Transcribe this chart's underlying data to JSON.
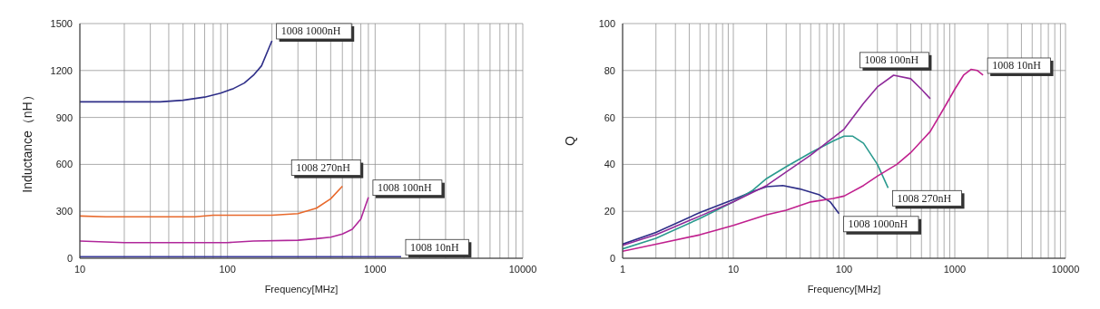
{
  "chart_data": [
    {
      "type": "line",
      "xlabel": "Frequency[MHz]",
      "ylabel": "Inductance（nH）",
      "log": "x",
      "grid": true,
      "line_style": "solid",
      "xlim": [
        10,
        10000
      ],
      "xticks": [
        10,
        {
          "value": 20,
          "label": null
        },
        {
          "value": 30,
          "label": null
        },
        {
          "value": 40,
          "label": null
        },
        {
          "value": 50,
          "label": null
        },
        {
          "value": 60,
          "label": null
        },
        {
          "value": 70,
          "label": null
        },
        {
          "value": 80,
          "label": null
        },
        {
          "value": 90,
          "label": null
        },
        100,
        {
          "value": 200,
          "label": null
        },
        {
          "value": 300,
          "label": null
        },
        {
          "value": 400,
          "label": null
        },
        {
          "value": 500,
          "label": null
        },
        {
          "value": 600,
          "label": null
        },
        {
          "value": 700,
          "label": null
        },
        {
          "value": 800,
          "label": null
        },
        {
          "value": 900,
          "label": null
        },
        1000,
        {
          "value": 2000,
          "label": null
        },
        {
          "value": 3000,
          "label": null
        },
        {
          "value": 4000,
          "label": null
        },
        {
          "value": 5000,
          "label": null
        },
        {
          "value": 6000,
          "label": null
        },
        {
          "value": 7000,
          "label": null
        },
        {
          "value": 8000,
          "label": null
        },
        {
          "value": 9000,
          "label": null
        },
        10000
      ],
      "ylim": [
        0,
        1500
      ],
      "yticks": [
        0,
        300,
        600,
        900,
        1200,
        1500
      ],
      "series": [
        {
          "color": "#2e2e88",
          "x": [
            10,
            20,
            35,
            50,
            70,
            90,
            110,
            130,
            150,
            170,
            200
          ],
          "values": [
            1000,
            1000,
            1000,
            1010,
            1030,
            1055,
            1085,
            1120,
            1170,
            1230,
            1390
          ]
        },
        {
          "color": "#e8692c",
          "x": [
            10,
            15,
            30,
            60,
            80,
            200,
            300,
            400,
            500,
            600
          ],
          "values": [
            270,
            265,
            265,
            265,
            275,
            275,
            285,
            320,
            380,
            460
          ]
        },
        {
          "color": "#b0279a",
          "x": [
            10,
            20,
            50,
            100,
            150,
            300,
            400,
            500,
            600,
            700,
            800,
            900
          ],
          "values": [
            110,
            100,
            100,
            100,
            110,
            115,
            125,
            135,
            155,
            185,
            250,
            390
          ]
        },
        {
          "color": "#3a3a9a",
          "x": [
            10,
            1500
          ],
          "values": [
            10,
            10
          ]
        }
      ],
      "annotations": [
        {
          "text": "1008 1000nH",
          "x": 200,
          "y": 1390
        },
        {
          "text": "1008 270nH",
          "x": 600,
          "y": 460
        },
        {
          "text": "1008 100nH",
          "x": 900,
          "y": 390
        },
        {
          "text": "1008 10nH",
          "x": 1500,
          "y": 10
        }
      ]
    },
    {
      "type": "line",
      "xlabel": "Frequency[MHz]",
      "ylabel": "Q",
      "log": "x",
      "grid": true,
      "line_style": "solid",
      "xlim": [
        1,
        10000
      ],
      "xticks": [
        1,
        {
          "value": 2,
          "label": null
        },
        {
          "value": 3,
          "label": null
        },
        {
          "value": 4,
          "label": null
        },
        {
          "value": 5,
          "label": null
        },
        {
          "value": 6,
          "label": null
        },
        {
          "value": 7,
          "label": null
        },
        {
          "value": 8,
          "label": null
        },
        {
          "value": 9,
          "label": null
        },
        10,
        {
          "value": 20,
          "label": null
        },
        {
          "value": 30,
          "label": null
        },
        {
          "value": 40,
          "label": null
        },
        {
          "value": 50,
          "label": null
        },
        {
          "value": 60,
          "label": null
        },
        {
          "value": 70,
          "label": null
        },
        {
          "value": 80,
          "label": null
        },
        {
          "value": 90,
          "label": null
        },
        100,
        {
          "value": 200,
          "label": null
        },
        {
          "value": 300,
          "label": null
        },
        {
          "value": 400,
          "label": null
        },
        {
          "value": 500,
          "label": null
        },
        {
          "value": 600,
          "label": null
        },
        {
          "value": 700,
          "label": null
        },
        {
          "value": 800,
          "label": null
        },
        {
          "value": 900,
          "label": null
        },
        1000,
        {
          "value": 2000,
          "label": null
        },
        {
          "value": 3000,
          "label": null
        },
        {
          "value": 4000,
          "label": null
        },
        {
          "value": 5000,
          "label": null
        },
        {
          "value": 6000,
          "label": null
        },
        {
          "value": 7000,
          "label": null
        },
        {
          "value": 8000,
          "label": null
        },
        {
          "value": 9000,
          "label": null
        },
        10000
      ],
      "ylim": [
        0,
        100
      ],
      "yticks": [
        0,
        20,
        40,
        60,
        80,
        100
      ],
      "series": [
        {
          "color": "#2e2e88",
          "x": [
            1,
            2,
            5,
            10,
            15,
            20,
            28,
            40,
            60,
            75,
            90
          ],
          "values": [
            6,
            11,
            19.5,
            25,
            28.5,
            30.5,
            31,
            29.5,
            27,
            24,
            19
          ]
        },
        {
          "color": "#2a9a8e",
          "x": [
            1,
            2,
            5,
            10,
            15,
            20,
            30,
            50,
            80,
            100,
            120,
            150,
            200,
            250
          ],
          "values": [
            4,
            8.5,
            17,
            24,
            29,
            34,
            39,
            45,
            50,
            52,
            52,
            49,
            40,
            30
          ]
        },
        {
          "color": "#8e2a9a",
          "x": [
            1,
            2,
            5,
            10,
            20,
            50,
            100,
            150,
            200,
            280,
            400,
            500,
            600
          ],
          "values": [
            5.5,
            10,
            18,
            24,
            31,
            44,
            55,
            66,
            73,
            78,
            76.5,
            72,
            68
          ]
        },
        {
          "color": "#c0208e",
          "x": [
            1,
            2,
            5,
            10,
            20,
            30,
            50,
            80,
            100,
            150,
            200,
            300,
            400,
            600,
            800,
            1000,
            1200,
            1400,
            1600,
            1800
          ],
          "values": [
            3,
            6,
            10,
            14,
            18.5,
            20.5,
            24,
            25.5,
            26.5,
            31,
            35,
            40,
            45,
            54,
            64,
            72,
            78,
            80.5,
            80,
            78
          ]
        }
      ],
      "annotations": [
        {
          "text": "1008 100nH",
          "x": 400,
          "y": 76.5
        },
        {
          "text": "1008 270nH",
          "x": 250,
          "y": 30
        },
        {
          "text": "1008 10nH",
          "x": 1800,
          "y": 78
        },
        {
          "text": "1008 1000nH",
          "x": 90,
          "y": 19
        }
      ]
    }
  ]
}
